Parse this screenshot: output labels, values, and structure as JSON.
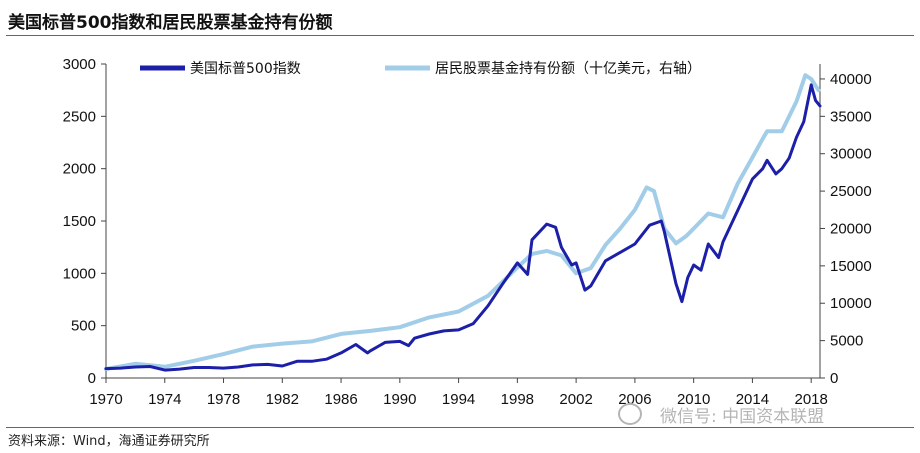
{
  "title": "美国标普500指数和居民股票基金持有份额",
  "source": "资料来源：Wind，海通证券研究所",
  "watermark": "微信号: 中国资本联盟",
  "colors": {
    "sp500": "#1c1fa8",
    "holdings": "#a2cde8",
    "axis": "#444444",
    "text": "#111111"
  },
  "chart_data": {
    "type": "line",
    "title": "美国标普500指数和居民股票基金持有份额",
    "x_ticks": [
      1970,
      1974,
      1978,
      1982,
      1986,
      1990,
      1994,
      1998,
      2002,
      2006,
      2010,
      2014,
      2018
    ],
    "xlim": [
      1970,
      2018.6
    ],
    "ylim_left": [
      0,
      3000
    ],
    "y_ticks_left": [
      0,
      500,
      1000,
      1500,
      2000,
      2500,
      3000
    ],
    "ylim_right": [
      0,
      42000
    ],
    "y_ticks_right": [
      0,
      5000,
      10000,
      15000,
      20000,
      25000,
      30000,
      35000,
      40000
    ],
    "legend_position": "top",
    "grid": false,
    "series": [
      {
        "name": "美国标普500指数",
        "axis": "left",
        "color": "#1c1fa8",
        "x": [
          1970,
          1971,
          1972,
          1973,
          1974,
          1975,
          1976,
          1977,
          1978,
          1979,
          1980,
          1981,
          1982,
          1983,
          1984,
          1985,
          1986,
          1987,
          1987.8,
          1988,
          1989,
          1990,
          1990.6,
          1991,
          1992,
          1993,
          1994,
          1995,
          1996,
          1997,
          1998,
          1998.7,
          1999,
          2000,
          2000.6,
          2001,
          2001.7,
          2002,
          2002.6,
          2003,
          2004,
          2005,
          2006,
          2007,
          2007.8,
          2008,
          2008.8,
          2009.2,
          2009.6,
          2010,
          2010.5,
          2011,
          2011.7,
          2012,
          2013,
          2014,
          2014.7,
          2015,
          2015.6,
          2016,
          2016.5,
          2017,
          2017.5,
          2018,
          2018.3,
          2018.6
        ],
        "values": [
          90,
          95,
          105,
          110,
          75,
          85,
          100,
          100,
          95,
          105,
          125,
          130,
          115,
          160,
          160,
          180,
          240,
          320,
          240,
          260,
          340,
          350,
          310,
          380,
          420,
          450,
          460,
          520,
          690,
          900,
          1100,
          990,
          1320,
          1470,
          1440,
          1250,
          1080,
          1100,
          840,
          880,
          1120,
          1200,
          1280,
          1460,
          1500,
          1400,
          900,
          730,
          960,
          1080,
          1030,
          1280,
          1150,
          1300,
          1600,
          1900,
          2000,
          2080,
          1950,
          2000,
          2100,
          2300,
          2450,
          2800,
          2650,
          2600
        ]
      },
      {
        "name": "居民股票基金持有份额（十亿美元，右轴）",
        "axis": "right",
        "color": "#a2cde8",
        "x": [
          1970,
          1972,
          1974,
          1976,
          1978,
          1980,
          1982,
          1984,
          1986,
          1988,
          1990,
          1992,
          1994,
          1996,
          1998,
          1999,
          2000,
          2001,
          2002,
          2003,
          2004,
          2005,
          2006,
          2006.8,
          2007.3,
          2008,
          2008.8,
          2009.5,
          2010,
          2011,
          2012,
          2013,
          2014,
          2014.7,
          2015,
          2016,
          2017,
          2017.6,
          2018,
          2018.5
        ],
        "values": [
          1200,
          1900,
          1500,
          2300,
          3200,
          4200,
          4600,
          4900,
          5900,
          6300,
          6800,
          8100,
          8900,
          11000,
          14800,
          16600,
          17000,
          16400,
          14000,
          14700,
          17800,
          20000,
          22500,
          25500,
          25000,
          20000,
          18000,
          19000,
          20000,
          22000,
          21500,
          26000,
          29500,
          32000,
          33000,
          33000,
          37000,
          40500,
          40000,
          38500
        ]
      }
    ]
  }
}
